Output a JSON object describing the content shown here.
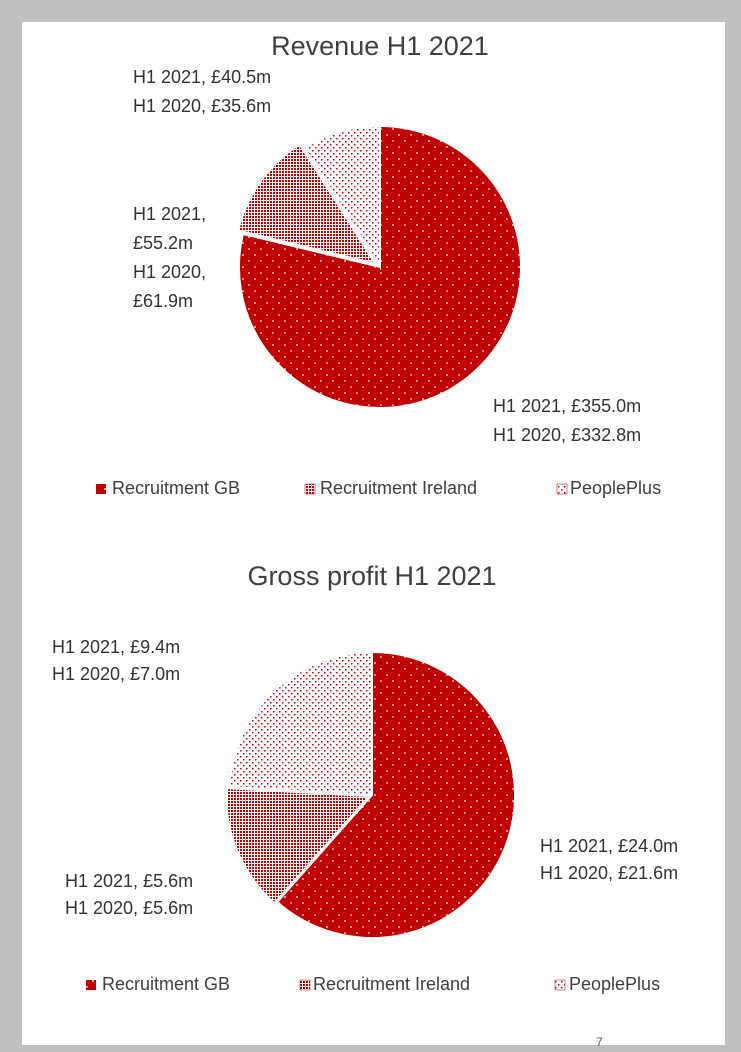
{
  "chart_data": [
    {
      "type": "pie",
      "title": "Revenue H1 2021",
      "categories": [
        "Recruitment GB",
        "Recruitment Ireland",
        "PeoplePlus"
      ],
      "series": [
        {
          "name": "H1 2021",
          "values": [
            355.0,
            55.2,
            40.5
          ],
          "value_labels": [
            "H1 2021, £355.0m",
            "H1 2021, £55.2m",
            "H1 2021, £40.5m"
          ]
        },
        {
          "name": "H1 2020",
          "values": [
            332.8,
            61.9,
            35.6
          ],
          "value_labels": [
            "H1 2020, £332.8m",
            "H1 2020, £61.9m",
            "H1 2020, £35.6m"
          ]
        }
      ],
      "colors": [
        "#c00000",
        "#c00000",
        "#c00000"
      ],
      "legend": "bottom"
    },
    {
      "type": "pie",
      "title": "Gross profit H1 2021",
      "categories": [
        "Recruitment GB",
        "Recruitment Ireland",
        "PeoplePlus"
      ],
      "series": [
        {
          "name": "H1 2021",
          "values": [
            24.0,
            5.6,
            9.4
          ],
          "value_labels": [
            "H1 2021, £24.0m",
            "H1 2021, £5.6m",
            "H1 2021, £9.4m"
          ]
        },
        {
          "name": "H1 2020",
          "values": [
            21.6,
            5.6,
            7.0
          ],
          "value_labels": [
            "H1 2020, £21.6m",
            "H1 2020, £5.6m",
            "H1 2020, £7.0m"
          ]
        }
      ],
      "colors": [
        "#c00000",
        "#c00000",
        "#c00000"
      ],
      "legend": "bottom"
    }
  ],
  "page_number": "7"
}
